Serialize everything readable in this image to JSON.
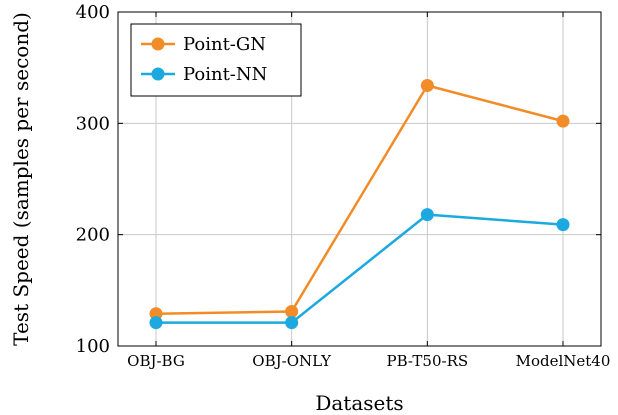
{
  "chart_data": {
    "type": "line",
    "title": "",
    "xlabel": "Datasets",
    "ylabel": "Test Speed (samples per second)",
    "categories": [
      "OBJ-BG",
      "OBJ-ONLY",
      "PB-T50-RS",
      "ModelNet40"
    ],
    "ylim": [
      100,
      400
    ],
    "yticks": [
      100,
      200,
      300,
      400
    ],
    "grid": true,
    "legend_position": "top-left",
    "series": [
      {
        "name": "Point-GN",
        "color": "#F28C28",
        "values": [
          129,
          131,
          334,
          302
        ]
      },
      {
        "name": "Point-NN",
        "color": "#1CA9E0",
        "values": [
          121,
          121,
          218,
          209
        ]
      }
    ]
  }
}
